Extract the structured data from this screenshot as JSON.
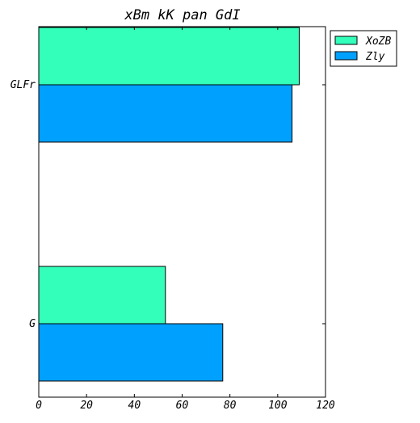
{
  "chart_data": {
    "type": "bar",
    "orientation": "horizontal",
    "title": "xBm kK pan GdI",
    "xlabel": "",
    "ylabel": "",
    "categories": [
      "GLFr",
      "G"
    ],
    "series": [
      {
        "name": "XoZB",
        "color": "#33ffbb",
        "values": [
          109,
          53
        ]
      },
      {
        "name": "Zly",
        "color": "#00a0ff",
        "values": [
          106,
          77
        ]
      }
    ],
    "xlim": [
      0,
      120
    ],
    "xticks": [
      0,
      20,
      40,
      60,
      80,
      100,
      120
    ],
    "grid": false,
    "legend_position": "outside-top-right"
  }
}
